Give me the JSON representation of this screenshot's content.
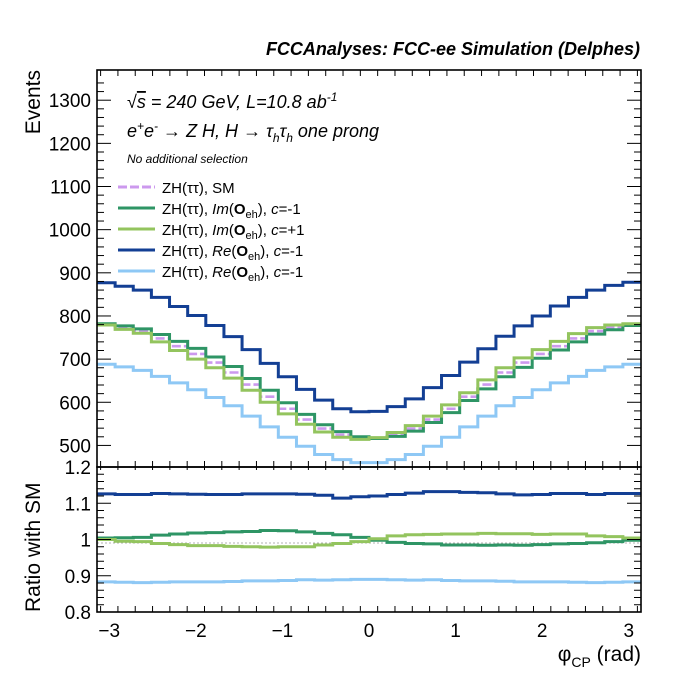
{
  "chart_data": [
    {
      "type": "line",
      "title": "FCCAnalyses: FCC-ee Simulation (Delphes)",
      "ylabel": "Events",
      "ylim": [
        450,
        1370
      ],
      "xlim": [
        -3.1416,
        3.1416
      ],
      "yticks": [
        500,
        600,
        700,
        800,
        900,
        1000,
        1100,
        1200,
        1300
      ],
      "annotations": {
        "energy": "√s = 240 GeV, L=10.8 ab⁻¹",
        "process": "e⁺e⁻ → Z H, H → τhτh one prong",
        "selection": "No additional selection"
      },
      "legend_position": "top-left",
      "x_bin_centers": [
        -3.0369,
        -2.8274,
        -2.618,
        -2.4086,
        -2.1991,
        -1.9897,
        -1.7802,
        -1.5708,
        -1.3614,
        -1.1519,
        -0.9425,
        -0.733,
        -0.5236,
        -0.3142,
        -0.1047,
        0.1047,
        0.3142,
        0.5236,
        0.733,
        0.9425,
        1.1519,
        1.3614,
        1.5708,
        1.7802,
        1.9897,
        2.1991,
        2.4086,
        2.618,
        2.8274,
        3.0369
      ],
      "series": [
        {
          "name": "ZH(ττ), SM",
          "label_parts": [
            "ZH(ττ), SM"
          ],
          "color": "#cc99ee",
          "values": [
            779,
            773,
            765,
            748,
            730,
            712,
            692,
            669,
            641,
            613,
            585,
            560,
            539,
            525,
            517,
            517,
            525,
            539,
            560,
            585,
            613,
            641,
            669,
            692,
            712,
            730,
            748,
            765,
            773,
            779
          ]
        },
        {
          "name": "ZH(ττ), Im(Oeh), c=-1",
          "label_parts": [
            "ZH(ττ), ",
            "Im",
            "(",
            "O",
            "eh",
            "), ",
            "c",
            "=-1"
          ],
          "color": "#2e9565",
          "values": [
            782,
            777,
            770,
            757,
            741,
            725,
            705,
            683,
            655,
            628,
            599,
            572,
            548,
            532,
            520,
            516,
            521,
            533,
            553,
            576,
            604,
            631,
            659,
            681,
            702,
            721,
            740,
            758,
            768,
            778
          ]
        },
        {
          "name": "ZH(ττ), Im(Oeh), c=+1",
          "label_parts": [
            "ZH(ττ), ",
            "Im",
            "(",
            "O",
            "eh",
            "), ",
            "c",
            "=+1"
          ],
          "color": "#93c45e",
          "values": [
            779,
            769,
            760,
            740,
            720,
            700,
            680,
            656,
            628,
            600,
            573,
            549,
            531,
            519,
            514,
            518,
            530,
            546,
            568,
            594,
            622,
            652,
            680,
            703,
            722,
            741,
            759,
            773,
            779,
            782
          ]
        },
        {
          "name": "ZH(ττ), Re(Oeh), c=-1",
          "label_parts": [
            "ZH(ττ), ",
            "Re",
            "(",
            "O",
            "eh",
            "), ",
            "c",
            "=-1"
          ],
          "color": "#133f94",
          "values": [
            877,
            869,
            860,
            843,
            822,
            801,
            778,
            752,
            722,
            690,
            659,
            630,
            605,
            585,
            578,
            579,
            590,
            608,
            634,
            662,
            693,
            724,
            753,
            777,
            800,
            823,
            843,
            860,
            871,
            878
          ]
        },
        {
          "name": "ZH(ττ), Re(Oeh), c=-1",
          "label_parts": [
            "ZH(ττ), ",
            "Re",
            "(",
            "O",
            "eh",
            "), ",
            "c",
            "=-1"
          ],
          "color": "#8ec8f5",
          "values": [
            688,
            682,
            674,
            660,
            645,
            629,
            611,
            592,
            568,
            543,
            519,
            498,
            479,
            467,
            460,
            460,
            467,
            479,
            498,
            519,
            543,
            568,
            592,
            611,
            629,
            645,
            660,
            674,
            682,
            688
          ]
        }
      ]
    },
    {
      "type": "line",
      "xlabel": "φCP (rad)",
      "ylabel": "Ratio with SM",
      "ylim": [
        0.8,
        1.2
      ],
      "yticks": [
        0.8,
        0.9,
        1,
        1.1,
        1.2
      ],
      "xticks": [
        -3,
        -2,
        -1,
        0,
        1,
        2,
        3
      ],
      "series": [
        {
          "name": "ZH(ττ), SM",
          "color": "#cc99ee",
          "values": [
            1,
            1,
            1,
            1,
            1,
            1,
            1,
            1,
            1,
            1,
            1,
            1,
            1,
            1,
            1,
            1,
            1,
            1,
            1,
            1,
            1,
            1,
            1,
            1,
            1,
            1,
            1,
            1,
            1,
            1
          ]
        },
        {
          "name": "ZH(ττ), Im(Oeh), c=-1",
          "color": "#2e9565",
          "values": [
            1.004,
            1.005,
            1.006,
            1.012,
            1.015,
            1.018,
            1.019,
            1.021,
            1.022,
            1.025,
            1.024,
            1.021,
            1.017,
            1.013,
            1.006,
            0.998,
            0.992,
            0.989,
            0.988,
            0.985,
            0.985,
            0.984,
            0.985,
            0.984,
            0.986,
            0.988,
            0.989,
            0.991,
            0.994,
            0.998
          ]
        },
        {
          "name": "ZH(ττ), Im(Oeh), c=+1",
          "color": "#93c45e",
          "values": [
            1.0,
            0.995,
            0.994,
            0.989,
            0.986,
            0.983,
            0.983,
            0.981,
            0.98,
            0.979,
            0.98,
            0.98,
            0.985,
            0.989,
            0.994,
            1.002,
            1.01,
            1.013,
            1.014,
            1.015,
            1.015,
            1.017,
            1.016,
            1.016,
            1.014,
            1.015,
            1.015,
            1.01,
            1.008,
            1.004
          ]
        },
        {
          "name": "ZH(ττ), Re(Oeh), c=-1",
          "color": "#133f94",
          "values": [
            1.126,
            1.124,
            1.124,
            1.127,
            1.126,
            1.125,
            1.124,
            1.124,
            1.126,
            1.126,
            1.126,
            1.125,
            1.122,
            1.114,
            1.118,
            1.12,
            1.124,
            1.128,
            1.132,
            1.132,
            1.13,
            1.129,
            1.126,
            1.123,
            1.124,
            1.127,
            1.127,
            1.124,
            1.127,
            1.127
          ]
        },
        {
          "name": "ZH(ττ), Re(Oeh), c=-1",
          "color": "#8ec8f5",
          "values": [
            0.883,
            0.882,
            0.881,
            0.882,
            0.883,
            0.883,
            0.883,
            0.884,
            0.886,
            0.886,
            0.887,
            0.889,
            0.888,
            0.889,
            0.89,
            0.89,
            0.889,
            0.888,
            0.889,
            0.887,
            0.886,
            0.886,
            0.885,
            0.883,
            0.883,
            0.883,
            0.882,
            0.881,
            0.882,
            0.883
          ]
        }
      ]
    }
  ]
}
